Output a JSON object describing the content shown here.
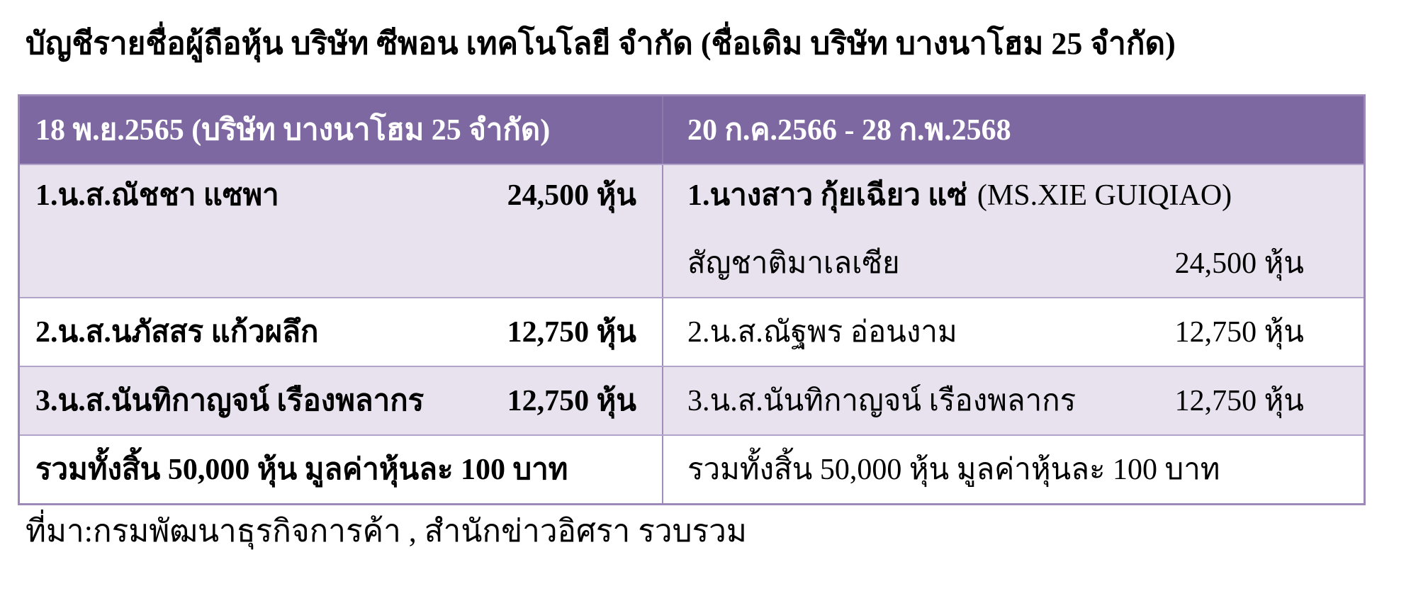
{
  "title": "บัญชีรายชื่อผู้ถือหุ้น บริษัท ซีพอน เทคโนโลยี จำกัด  (ชื่อเดิม บริษัท บางนาโฮม 25 จำกัด)",
  "colors": {
    "header_bg": "#7e68a1",
    "header_text": "#ffffff",
    "row_alt_bg": "#e8e2ef",
    "row_bg": "#ffffff",
    "border": "#9c89b8",
    "text": "#000000"
  },
  "table": {
    "header": {
      "left": "18 พ.ย.2565 (บริษัท บางนาโฮม 25 จำกัด)",
      "right": "20 ก.ค.2566 - 28 ก.พ.2568"
    },
    "rows": [
      {
        "left": {
          "name": "1.น.ส.ณัชชา แซพา",
          "shares": "24,500 หุ้น"
        },
        "right": {
          "name_thai": "1.นางสาว กุ้ยเฉียว แซ่",
          "name_latin": "(MS.XIE GUIQIAO)",
          "nationality": "สัญชาติมาเลเซีย",
          "shares": "24,500 หุ้น"
        }
      },
      {
        "left": {
          "name": "2.น.ส.นภัสสร แก้วผลึก",
          "shares": "12,750 หุ้น"
        },
        "right": {
          "name": "2.น.ส.ณัฐพร อ่อนงาม",
          "shares": "12,750 หุ้น"
        }
      },
      {
        "left": {
          "name": "3.น.ส.นันทิกาญจน์ เรืองพลากร",
          "shares": "12,750 หุ้น"
        },
        "right": {
          "name": "3.น.ส.นันทิกาญจน์ เรืองพลากร",
          "shares": "12,750  หุ้น"
        }
      },
      {
        "left": {
          "text": "รวมทั้งสิ้น 50,000 หุ้น มูลค่าหุ้นละ 100 บาท"
        },
        "right": {
          "text": "รวมทั้งสิ้น 50,000 หุ้น มูลค่าหุ้นละ  100 บาท"
        }
      }
    ]
  },
  "source_note": "ที่มา:กรมพัฒนาธุรกิจการค้า , สำนักข่าวอิศรา รวบรวม"
}
